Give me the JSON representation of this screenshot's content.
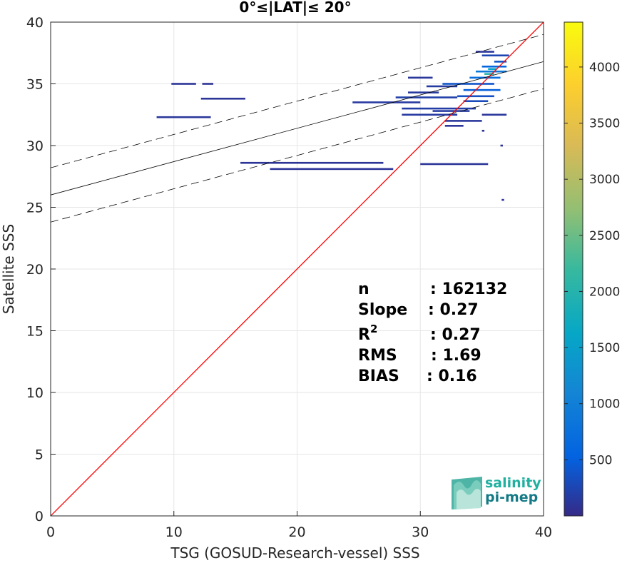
{
  "chart_data": {
    "type": "heatmap",
    "title": "0°≤|LAT|≤ 20°",
    "xlabel": "TSG (GOSUD-Research-vessel) SSS",
    "ylabel": "Satellite SSS",
    "xlim": [
      0,
      40
    ],
    "ylim": [
      0,
      40
    ],
    "xticks": [
      "0",
      "10",
      "20",
      "30",
      "40"
    ],
    "yticks": [
      "0",
      "5",
      "10",
      "15",
      "20",
      "25",
      "30",
      "35",
      "40"
    ],
    "grid": true,
    "colorbar": {
      "range": [
        0,
        4400
      ],
      "ticks": [
        "500",
        "1000",
        "1500",
        "2000",
        "2500",
        "3000",
        "3500",
        "4000"
      ],
      "tick_values": [
        500,
        1000,
        1500,
        2000,
        2500,
        3000,
        3500,
        4000
      ],
      "colormap": "parula"
    },
    "one_to_one_line": {
      "x": [
        0,
        40
      ],
      "y": [
        0,
        40
      ],
      "color": "#ff0000"
    },
    "regression_line": {
      "intercept": 26.0,
      "slope": 0.27,
      "color": "#000000"
    },
    "confidence_band": {
      "offset": 2.2,
      "style": "dashed"
    },
    "density_segments": [
      {
        "x0": 9.8,
        "x1": 11.8,
        "y": 35.0,
        "density": 100
      },
      {
        "x0": 12.3,
        "x1": 13.2,
        "y": 35.0,
        "density": 80
      },
      {
        "x0": 12.2,
        "x1": 15.8,
        "y": 33.8,
        "density": 100
      },
      {
        "x0": 8.6,
        "x1": 13.0,
        "y": 32.3,
        "density": 120
      },
      {
        "x0": 15.4,
        "x1": 27.0,
        "y": 28.6,
        "density": 90
      },
      {
        "x0": 17.8,
        "x1": 27.8,
        "y": 28.1,
        "density": 90
      },
      {
        "x0": 30.0,
        "x1": 35.5,
        "y": 28.5,
        "density": 100
      },
      {
        "x0": 24.5,
        "x1": 30.0,
        "y": 33.5,
        "density": 150
      },
      {
        "x0": 28.0,
        "x1": 33.0,
        "y": 33.9,
        "density": 200
      },
      {
        "x0": 28.5,
        "x1": 34.5,
        "y": 33.0,
        "density": 180
      },
      {
        "x0": 28.5,
        "x1": 33.0,
        "y": 32.5,
        "density": 150
      },
      {
        "x0": 31.0,
        "x1": 34.0,
        "y": 32.8,
        "density": 160
      },
      {
        "x0": 29.0,
        "x1": 31.0,
        "y": 35.5,
        "density": 120
      },
      {
        "x0": 29.0,
        "x1": 31.5,
        "y": 34.3,
        "density": 140
      },
      {
        "x0": 30.5,
        "x1": 33.0,
        "y": 34.8,
        "density": 160
      },
      {
        "x0": 31.8,
        "x1": 36.0,
        "y": 35.0,
        "density": 400
      },
      {
        "x0": 33.5,
        "x1": 36.5,
        "y": 34.5,
        "density": 500
      },
      {
        "x0": 33.0,
        "x1": 36.0,
        "y": 34.0,
        "density": 350
      },
      {
        "x0": 33.5,
        "x1": 35.5,
        "y": 33.6,
        "density": 300
      },
      {
        "x0": 34.0,
        "x1": 36.5,
        "y": 35.5,
        "density": 700
      },
      {
        "x0": 34.5,
        "x1": 37.0,
        "y": 36.0,
        "density": 900
      },
      {
        "x0": 35.0,
        "x1": 37.0,
        "y": 36.4,
        "density": 600
      },
      {
        "x0": 35.2,
        "x1": 36.0,
        "y": 35.8,
        "density": 2000
      },
      {
        "x0": 35.5,
        "x1": 36.2,
        "y": 36.2,
        "density": 1600
      },
      {
        "x0": 36.0,
        "x1": 37.0,
        "y": 36.8,
        "density": 400
      },
      {
        "x0": 35.0,
        "x1": 37.2,
        "y": 37.3,
        "density": 250
      },
      {
        "x0": 34.5,
        "x1": 36.0,
        "y": 37.6,
        "density": 120
      },
      {
        "x0": 32.0,
        "x1": 35.0,
        "y": 32.0,
        "density": 120
      },
      {
        "x0": 35.0,
        "x1": 37.0,
        "y": 32.5,
        "density": 120
      },
      {
        "x0": 32.0,
        "x1": 33.5,
        "y": 31.6,
        "density": 100
      },
      {
        "x0": 35.0,
        "x1": 35.2,
        "y": 31.2,
        "density": 80
      },
      {
        "x0": 36.5,
        "x1": 36.7,
        "y": 30.0,
        "density": 80
      },
      {
        "x0": 36.6,
        "x1": 36.8,
        "y": 25.6,
        "density": 80
      }
    ],
    "stats": [
      {
        "label": "n",
        "value": ": 162132"
      },
      {
        "label": "Slope",
        "value": ": 0.27"
      },
      {
        "label": "R",
        "sup": "2",
        "value": ": 0.27"
      },
      {
        "label": "RMS",
        "value": ": 1.69"
      },
      {
        "label": "BIAS",
        "value": ": 0.16"
      }
    ]
  },
  "logo": {
    "line1": "salinity",
    "line2": "pi-mep",
    "color1": "#20b0a0",
    "color2": "#147a86"
  }
}
